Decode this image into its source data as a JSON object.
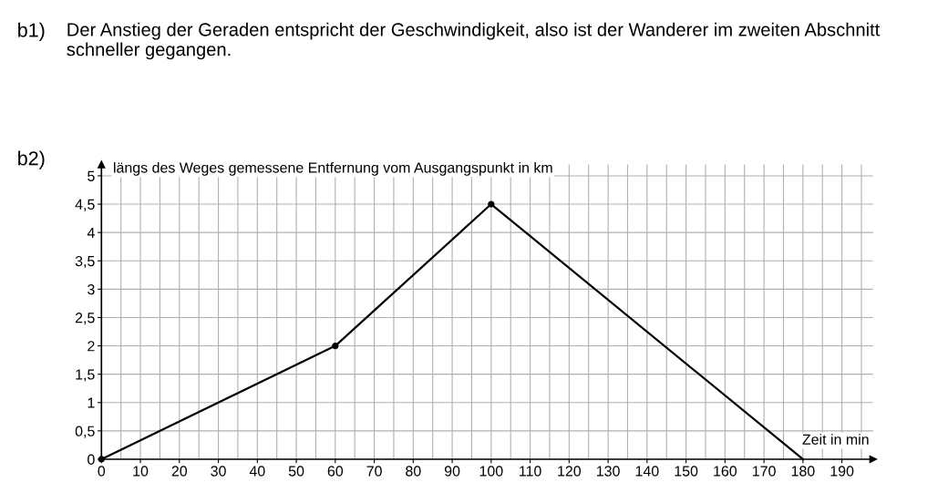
{
  "chart_data": {
    "type": "line",
    "annotations": [
      "b1)",
      "Der Anstieg der Geraden entspricht der Geschwindigkeit, also ist der Wanderer im zweiten Abschnitt schneller gegangen.",
      "b2)"
    ],
    "xlabel": "Zeit in min",
    "ylabel": "längs des Weges gemessene Entfernung vom Ausgangspunkt in km",
    "series": [
      {
        "color": "#000000",
        "x": [
          0,
          60,
          100,
          180
        ],
        "values": [
          0,
          2,
          4.5,
          0
        ]
      },
      {
        "type": "scatter",
        "color": "#000000",
        "x": [
          0,
          60,
          100
        ],
        "values": [
          0,
          2,
          4.5
        ]
      }
    ],
    "xlim": [
      0,
      198
    ],
    "ylim": [
      0,
      5.2
    ],
    "xticks": [
      0,
      {
        "value": 5,
        "label": null
      },
      10,
      {
        "value": 15,
        "label": null
      },
      20,
      {
        "value": 25,
        "label": null
      },
      30,
      {
        "value": 35,
        "label": null
      },
      40,
      {
        "value": 45,
        "label": null
      },
      50,
      {
        "value": 55,
        "label": null
      },
      60,
      {
        "value": 65,
        "label": null
      },
      70,
      {
        "value": 75,
        "label": null
      },
      80,
      {
        "value": 85,
        "label": null
      },
      90,
      {
        "value": 95,
        "label": null
      },
      100,
      {
        "value": 105,
        "label": null
      },
      110,
      {
        "value": 115,
        "label": null
      },
      120,
      {
        "value": 125,
        "label": null
      },
      130,
      {
        "value": 135,
        "label": null
      },
      140,
      {
        "value": 145,
        "label": null
      },
      150,
      {
        "value": 155,
        "label": null
      },
      160,
      {
        "value": 165,
        "label": null
      },
      170,
      {
        "value": 175,
        "label": null
      },
      180,
      {
        "value": 185,
        "label": null
      },
      190,
      {
        "value": 195,
        "label": null
      }
    ],
    "yticks": [
      0,
      {
        "value": 0.5,
        "label": "0,5"
      },
      1,
      {
        "value": 1.5,
        "label": "1,5"
      },
      2,
      {
        "value": 2.5,
        "label": "2,5"
      },
      3,
      {
        "value": 3.5,
        "label": "3,5"
      },
      4,
      {
        "value": 4.5,
        "label": "4,5"
      },
      5
    ],
    "grid": true,
    "line_style": "solid"
  }
}
